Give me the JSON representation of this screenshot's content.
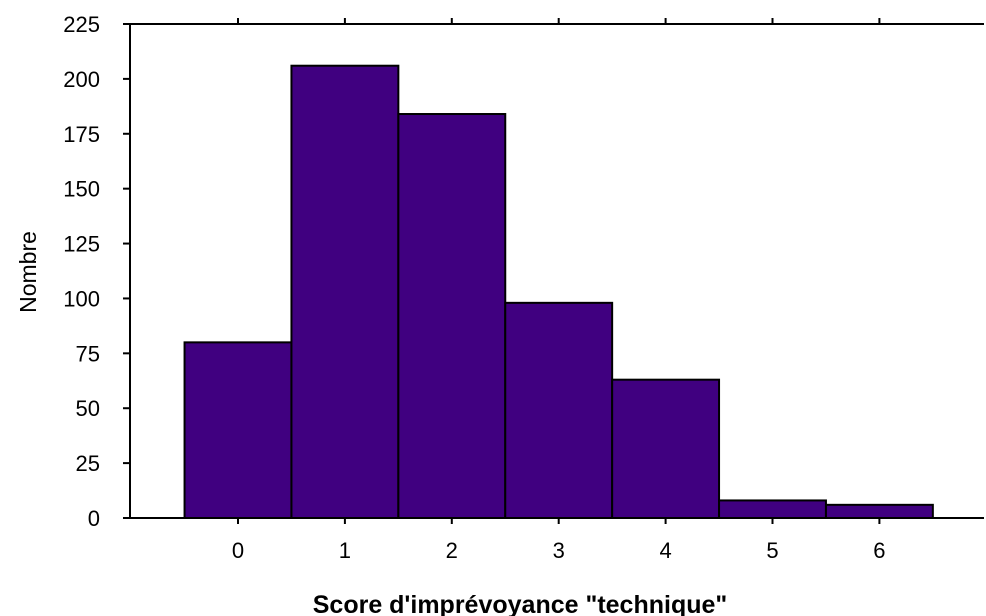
{
  "chart_data": {
    "type": "bar",
    "categories": [
      "0",
      "1",
      "2",
      "3",
      "4",
      "5",
      "6"
    ],
    "values": [
      80,
      206,
      184,
      98,
      63,
      8,
      6
    ],
    "title": "",
    "xlabel": "Score d'imprévoyance \"technique\"",
    "ylabel": "Nombre",
    "ylim": [
      0,
      225
    ],
    "yticks": [
      0,
      25,
      50,
      75,
      100,
      125,
      150,
      175,
      200,
      225
    ],
    "grid": false,
    "bar_color": "#400080"
  }
}
